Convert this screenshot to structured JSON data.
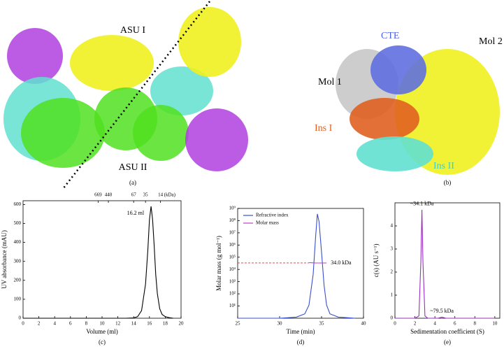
{
  "structures": {
    "a": {
      "labels": [
        "ASU I",
        "ASU II"
      ],
      "panel_label": "(a)"
    },
    "b": {
      "labels": [
        "CTE",
        "Mol 2",
        "Mol 1",
        "Ins I",
        "Ins II"
      ],
      "panel_label": "(b)"
    }
  },
  "chart_data": [
    {
      "type": "line",
      "panel_label": "(c)",
      "x_label": "Volume (ml)",
      "y_label": "UV absorbance (mAU)",
      "x": [
        0,
        13,
        14,
        14.5,
        15,
        15.5,
        15.8,
        16,
        16.2,
        16.4,
        16.6,
        16.8,
        17,
        17.3,
        17.6,
        18,
        18.5,
        19
      ],
      "series": [
        {
          "color": "#000000",
          "values": [
            0,
            0,
            2,
            8,
            40,
            180,
            360,
            520,
            590,
            520,
            380,
            230,
            130,
            50,
            20,
            8,
            3,
            0
          ]
        }
      ],
      "xlim": [
        0,
        20
      ],
      "xticks": [
        0,
        2,
        4,
        6,
        8,
        10,
        12,
        14,
        16,
        18,
        20
      ],
      "ylim": [
        0,
        620
      ],
      "yticks": [
        0,
        100,
        200,
        300,
        400,
        500,
        600
      ],
      "top_ticks": [
        {
          "value": 9.5,
          "label": "669"
        },
        {
          "value": 10.8,
          "label": "440"
        },
        {
          "value": 14,
          "label": "67"
        },
        {
          "value": 15.5,
          "label": "35"
        },
        {
          "value": 17.4,
          "label": "14"
        }
      ],
      "top_unit": "(kDa)",
      "annotations": [
        "16.2 ml"
      ]
    },
    {
      "type": "line",
      "panel_label": "(d)",
      "x_label": "Time (min)",
      "y_label": "Molar mass (g mol⁻¹)",
      "x": [
        25,
        30,
        32,
        33,
        33.5,
        34,
        34.3,
        34.5,
        34.7,
        35,
        35.3,
        35.6,
        36,
        37,
        38,
        39
      ],
      "series": [
        {
          "name": "Refractive index",
          "color": "#3a4fd0",
          "axis": "y2",
          "values": [
            0,
            0,
            0.01,
            0.04,
            0.12,
            0.4,
            0.75,
            0.95,
            0.88,
            0.6,
            0.3,
            0.12,
            0.04,
            0.01,
            0.005,
            0
          ]
        },
        {
          "name": "Molar mass",
          "color": "#c040c0",
          "values": [
            null,
            null,
            null,
            null,
            36000,
            34500,
            34000,
            34000,
            34000,
            34000,
            34000,
            34000,
            null,
            null,
            null,
            null
          ]
        }
      ],
      "xlim": [
        25,
        40
      ],
      "xticks": [
        25,
        30,
        35,
        40
      ],
      "ylim": [
        1,
        1000000000
      ],
      "ylog": true,
      "yticks": [
        {
          "value": 10,
          "label": "10¹"
        },
        {
          "value": 100,
          "label": "10²"
        },
        {
          "value": 1000,
          "label": "10³"
        },
        {
          "value": 10000,
          "label": "10⁴"
        },
        {
          "value": 100000,
          "label": "10⁵"
        },
        {
          "value": 1000000,
          "label": "10⁶"
        },
        {
          "value": 10000000,
          "label": "10⁷"
        },
        {
          "value": 100000000,
          "label": "10⁸"
        },
        {
          "value": 1000000000,
          "label": "10⁹"
        }
      ],
      "y2lim": [
        0,
        1
      ],
      "hline": {
        "value": 34000,
        "label": "34.0 kDa",
        "color": "#e03030"
      },
      "legend": "upper left"
    },
    {
      "type": "line",
      "panel_label": "(e)",
      "x_label": "Sedimentation coefficient (S)",
      "y_label": "c(s) (AU s⁻¹)",
      "x": [
        0,
        2,
        2.4,
        2.6,
        2.7,
        2.8,
        3.0,
        3.3,
        4.3,
        4.7,
        5.1,
        6,
        10
      ],
      "series": [
        {
          "color": "#9a30c0",
          "values": [
            0,
            0,
            0.1,
            2.5,
            4.7,
            2.5,
            0.1,
            0,
            0,
            0.05,
            0,
            0,
            0
          ]
        }
      ],
      "xlim": [
        0,
        10.5
      ],
      "xticks": [
        0,
        2,
        4,
        6,
        8,
        10
      ],
      "ylim": [
        0,
        5
      ],
      "yticks": [
        0,
        1,
        2,
        3,
        4
      ],
      "annotations": [
        "~34.1 kDa",
        "~79.5 kDa"
      ]
    }
  ]
}
